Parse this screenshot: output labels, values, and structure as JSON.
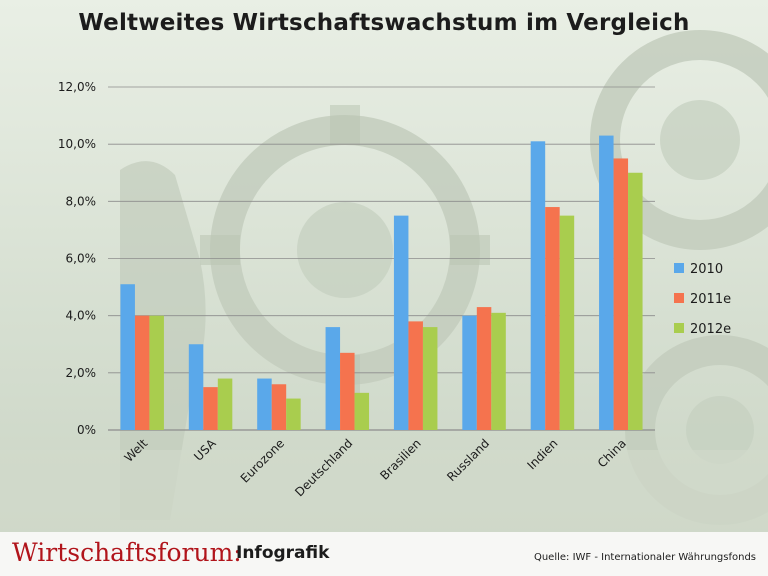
{
  "title": "Weltweites Wirtschaftswachstum im Vergleich",
  "footer": {
    "brand": "Wirtschaftsforum:",
    "subtitle": "Infografik",
    "source": "Quelle: IWF - Internationaler Währungsfonds"
  },
  "colors": {
    "series": [
      "#5aa8ea",
      "#f5734e",
      "#a9cd4e"
    ],
    "grid": "#8c8c8c"
  },
  "chart_data": {
    "type": "bar",
    "title": "Weltweites Wirtschaftswachstum im Vergleich",
    "xlabel": "",
    "ylabel": "",
    "categories": [
      "Welt",
      "USA",
      "Eurozone",
      "Deutschland",
      "Brasilien",
      "Russland",
      "Indien",
      "China"
    ],
    "series": [
      {
        "name": "2010",
        "values": [
          5.1,
          3.0,
          1.8,
          3.6,
          7.5,
          4.0,
          10.1,
          10.3
        ]
      },
      {
        "name": "2011e",
        "values": [
          4.0,
          1.5,
          1.6,
          2.7,
          3.8,
          4.3,
          7.8,
          9.5
        ]
      },
      {
        "name": "2012e",
        "values": [
          4.0,
          1.8,
          1.1,
          1.3,
          3.6,
          4.1,
          7.5,
          9.0
        ]
      }
    ],
    "ylim": [
      0,
      12
    ],
    "yticks": [
      0,
      2,
      4,
      6,
      8,
      10,
      12
    ],
    "ytick_labels": [
      "0%",
      "2,0%",
      "4,0%",
      "6,0%",
      "8,0%",
      "10,0%",
      "12,0%"
    ],
    "grid": true,
    "legend_position": "right"
  }
}
